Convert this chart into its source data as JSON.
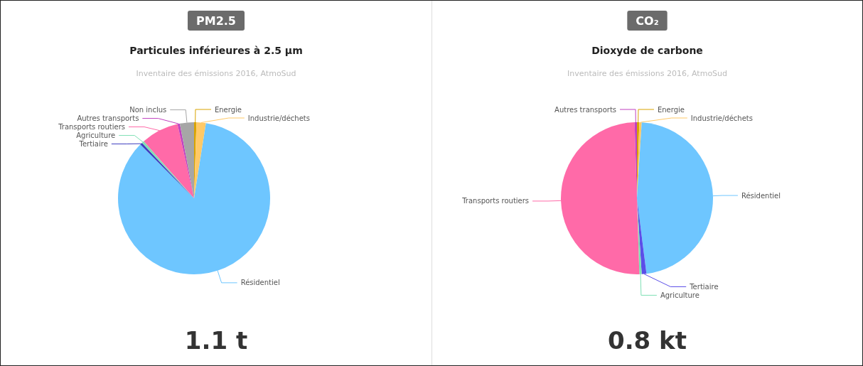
{
  "chart_data": [
    {
      "type": "pie",
      "title": "PM2.5",
      "subtitle": "Particules inférieures à 2.5 µm",
      "annotations": [
        "Inventaire des émissions 2016, AtmoSud",
        "1.1 t"
      ],
      "legend": false,
      "categories": [
        "Energie",
        "Industrie/déchets",
        "Résidentiel",
        "Tertiaire",
        "Agriculture",
        "Transports routiers",
        "Autres transports",
        "Non inclus"
      ],
      "values": [
        0.5,
        2,
        85,
        0.5,
        0.5,
        8,
        0.5,
        3
      ],
      "colors": [
        "#d9a400",
        "#ffc966",
        "#6ec6ff",
        "#3f3fbf",
        "#7fe0b5",
        "#ff6aa8",
        "#c041c0",
        "#a6a6a6"
      ]
    },
    {
      "type": "pie",
      "title": "CO₂",
      "subtitle": "Dioxyde de carbone",
      "annotations": [
        "Inventaire des émissions 2016, AtmoSud",
        "0.8 kt"
      ],
      "legend": false,
      "categories": [
        "Energie",
        "Industrie/déchets",
        "Résidentiel",
        "Tertiaire",
        "Agriculture",
        "Transports routiers",
        "Autres transports"
      ],
      "values": [
        0.5,
        0.5,
        47,
        1,
        0.5,
        50,
        0.5
      ],
      "colors": [
        "#d9a400",
        "#ffc966",
        "#6ec6ff",
        "#5b4ee8",
        "#7fe0b5",
        "#ff6aa8",
        "#c041c0"
      ]
    }
  ]
}
